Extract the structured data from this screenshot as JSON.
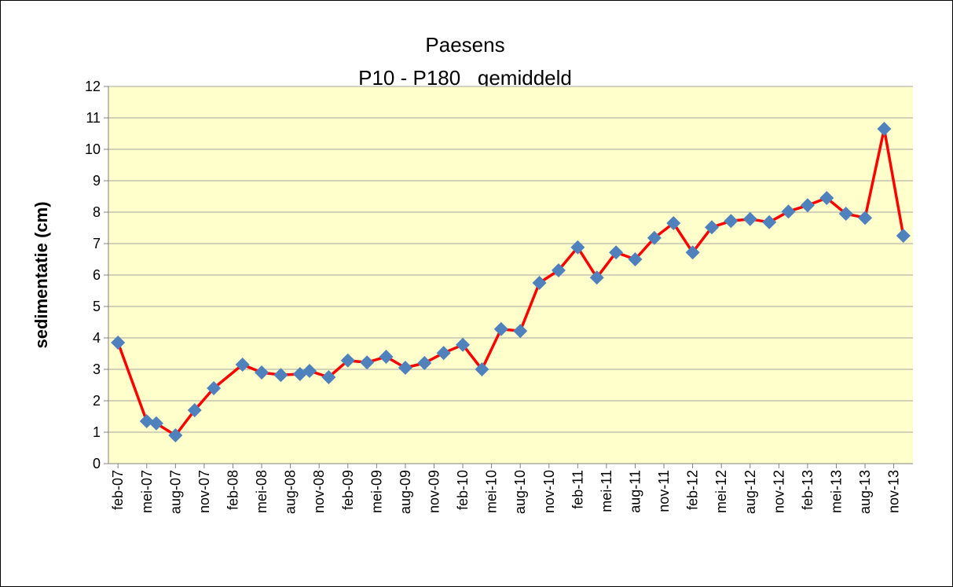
{
  "chart_data": {
    "type": "line",
    "title": "Paesens",
    "subtitle": "P10 - P180   gemiddeld",
    "y_label": "sedimentatie (cm)",
    "x": [
      "2007-02",
      "2007-05",
      "2007-06",
      "2007-08",
      "2007-10",
      "2007-12",
      "2008-03",
      "2008-05",
      "2008-07",
      "2008-09",
      "2008-10",
      "2008-12",
      "2009-02",
      "2009-04",
      "2009-06",
      "2009-08",
      "2009-10",
      "2009-12",
      "2010-02",
      "2010-04",
      "2010-06",
      "2010-08",
      "2010-10",
      "2010-12",
      "2011-02",
      "2011-04",
      "2011-06",
      "2011-08",
      "2011-10",
      "2011-12",
      "2012-02",
      "2012-04",
      "2012-06",
      "2012-08",
      "2012-10",
      "2012-12",
      "2013-02",
      "2013-04",
      "2013-06",
      "2013-08",
      "2013-10",
      "2013-12"
    ],
    "values": [
      3.85,
      1.35,
      1.28,
      0.9,
      1.7,
      2.4,
      3.15,
      2.9,
      2.82,
      2.85,
      2.95,
      2.75,
      3.28,
      3.22,
      3.4,
      3.05,
      3.2,
      3.52,
      3.78,
      3.0,
      4.28,
      4.22,
      5.75,
      6.15,
      6.88,
      5.92,
      6.72,
      6.5,
      7.18,
      7.65,
      6.72,
      7.52,
      7.72,
      7.78,
      7.68,
      8.02,
      8.22,
      8.45,
      7.95,
      7.82,
      10.65,
      7.25
    ],
    "color": "#ff0000",
    "marker_color": "#4f81bd",
    "plot_background": "#ffffcc",
    "grid": true,
    "xlim": [
      "2007-01",
      "2014-01"
    ],
    "xticks": [
      {
        "value": "2007-02",
        "label": "feb-07"
      },
      {
        "value": "2007-05",
        "label": "mei-07"
      },
      {
        "value": "2007-08",
        "label": "aug-07"
      },
      {
        "value": "2007-11",
        "label": "nov-07"
      },
      {
        "value": "2008-02",
        "label": "feb-08"
      },
      {
        "value": "2008-05",
        "label": "mei-08"
      },
      {
        "value": "2008-08",
        "label": "aug-08"
      },
      {
        "value": "2008-11",
        "label": "nov-08"
      },
      {
        "value": "2009-02",
        "label": "feb-09"
      },
      {
        "value": "2009-05",
        "label": "mei-09"
      },
      {
        "value": "2009-08",
        "label": "aug-09"
      },
      {
        "value": "2009-11",
        "label": "nov-09"
      },
      {
        "value": "2010-02",
        "label": "feb-10"
      },
      {
        "value": "2010-05",
        "label": "mei-10"
      },
      {
        "value": "2010-08",
        "label": "aug-10"
      },
      {
        "value": "2010-11",
        "label": "nov-10"
      },
      {
        "value": "2011-02",
        "label": "feb-11"
      },
      {
        "value": "2011-05",
        "label": "mei-11"
      },
      {
        "value": "2011-08",
        "label": "aug-11"
      },
      {
        "value": "2011-11",
        "label": "nov-11"
      },
      {
        "value": "2012-02",
        "label": "feb-12"
      },
      {
        "value": "2012-05",
        "label": "mei-12"
      },
      {
        "value": "2012-08",
        "label": "aug-12"
      },
      {
        "value": "2012-11",
        "label": "nov-12"
      },
      {
        "value": "2013-02",
        "label": "feb-13"
      },
      {
        "value": "2013-05",
        "label": "mei-13"
      },
      {
        "value": "2013-08",
        "label": "aug-13"
      },
      {
        "value": "2013-11",
        "label": "nov-13"
      }
    ],
    "ylim": [
      0,
      12
    ],
    "yticks": [
      0,
      1,
      2,
      3,
      4,
      5,
      6,
      7,
      8,
      9,
      10,
      11,
      12
    ]
  }
}
